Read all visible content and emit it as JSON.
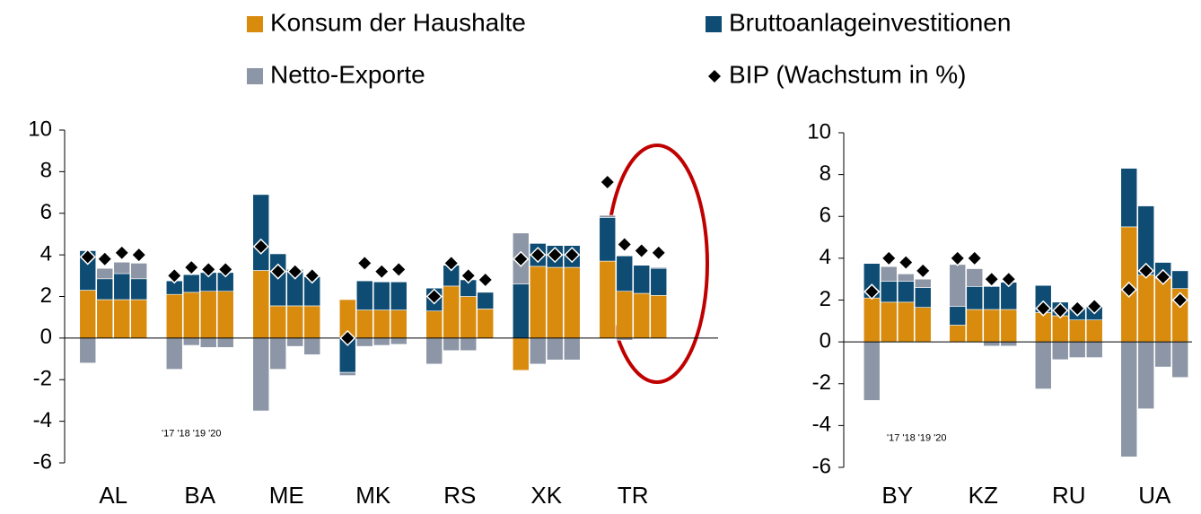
{
  "chart_data": [
    {
      "type": "bar",
      "groups": [
        "AL",
        "BA",
        "ME",
        "MK",
        "RS",
        "XK",
        "TR"
      ],
      "annotation": "'17 '18 '19 '20",
      "ylim": [
        -6,
        10
      ],
      "yticks": [
        -6,
        -4,
        -2,
        0,
        2,
        4,
        6,
        8,
        10
      ],
      "series": [
        {
          "name": "Konsum der Haushalte",
          "color": "#d88b0c",
          "values": [
            2.3,
            1.85,
            1.85,
            1.85,
            2.1,
            2.2,
            2.25,
            2.25,
            3.25,
            1.55,
            1.55,
            1.55,
            1.85,
            1.35,
            1.35,
            1.35,
            1.3,
            2.5,
            2.0,
            1.4,
            -1.55,
            3.45,
            3.4,
            3.4,
            3.7,
            2.25,
            2.15,
            2.05
          ]
        },
        {
          "name": "Bruttoanlageinvestitionen",
          "color": "#0e4c73",
          "values": [
            1.9,
            1.0,
            1.25,
            1.0,
            0.65,
            0.85,
            0.9,
            0.9,
            3.65,
            2.5,
            1.75,
            1.4,
            -1.65,
            1.4,
            1.35,
            1.35,
            1.1,
            1.0,
            0.8,
            0.8,
            2.6,
            1.1,
            1.05,
            1.05,
            2.1,
            1.7,
            1.35,
            1.3
          ]
        },
        {
          "name": "Netto-Exporte",
          "color": "#8c96a6",
          "values": [
            -1.2,
            0.5,
            0.55,
            0.75,
            -1.5,
            -0.35,
            -0.45,
            -0.45,
            -3.5,
            -1.5,
            -0.4,
            -0.8,
            -0.15,
            -0.4,
            -0.35,
            -0.3,
            -1.25,
            -0.6,
            -0.6,
            0,
            2.45,
            -1.25,
            -1.05,
            -1.05,
            0.1,
            -0.1,
            0,
            0.05
          ]
        },
        {
          "name": "BIP (Wachstum in %)",
          "color": "#000000",
          "style": "diamond",
          "values": [
            3.9,
            3.8,
            4.1,
            4.0,
            3.0,
            3.4,
            3.3,
            3.3,
            4.4,
            3.2,
            3.2,
            3.0,
            0.0,
            3.6,
            3.2,
            3.3,
            2.0,
            3.6,
            3.0,
            2.8,
            3.8,
            4.0,
            4.0,
            4.0,
            7.5,
            4.5,
            4.2,
            4.1
          ]
        }
      ]
    },
    {
      "type": "bar",
      "groups": [
        "BY",
        "KZ",
        "RU",
        "UA"
      ],
      "annotation": "'17 '18 '19 '20",
      "ylim": [
        -6,
        10
      ],
      "yticks": [
        -6,
        -4,
        -2,
        0,
        2,
        4,
        6,
        8,
        10
      ],
      "series": [
        {
          "color": "#d88b0c",
          "values": [
            2.1,
            1.9,
            1.9,
            1.65,
            0.8,
            1.55,
            1.55,
            1.55,
            1.4,
            1.25,
            1.05,
            1.05,
            5.5,
            3.2,
            3.05,
            2.55
          ]
        },
        {
          "color": "#0e4c73",
          "values": [
            1.65,
            1.0,
            1.0,
            0.95,
            0.9,
            1.1,
            1.1,
            1.3,
            1.3,
            0.65,
            0.55,
            0.65,
            2.8,
            3.3,
            0.75,
            0.85
          ]
        },
        {
          "color": "#8c96a6",
          "values": [
            -2.8,
            0.7,
            0.35,
            0.4,
            2.0,
            0.85,
            -0.2,
            -0.2,
            -2.25,
            -0.85,
            -0.75,
            -0.75,
            -5.5,
            -3.2,
            -1.2,
            -1.7
          ]
        },
        {
          "color": "#000000",
          "style": "diamond",
          "values": [
            2.4,
            4.0,
            3.8,
            3.4,
            4.0,
            4.0,
            3.0,
            3.0,
            1.6,
            1.5,
            1.6,
            1.7,
            2.5,
            3.4,
            3.1,
            2.0
          ]
        }
      ]
    }
  ]
}
